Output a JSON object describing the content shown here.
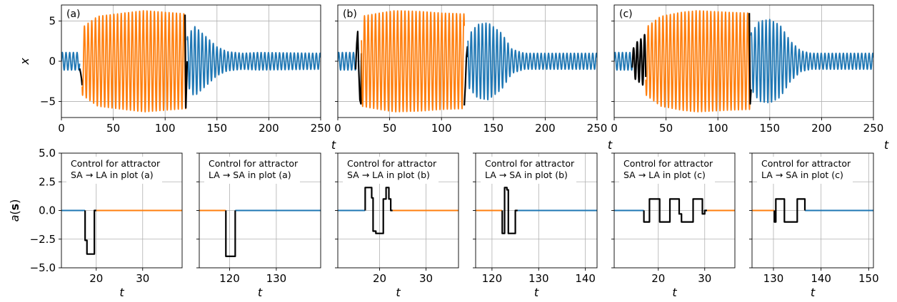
{
  "chart_data": {
    "type": "line",
    "colors": {
      "small_amplitude": "#1f77b4",
      "large_amplitude": "#ff7f0e",
      "control": "#000000"
    },
    "top_panels": [
      {
        "label": "(a)",
        "xlim": [
          0,
          250
        ],
        "ylim": [
          -7,
          7
        ],
        "xticks": [
          "0",
          "50",
          "100",
          "150",
          "200",
          "250"
        ],
        "yticks": [
          "−5",
          "0",
          "5"
        ],
        "ylabel": "x",
        "xlabel": "t",
        "grid": true,
        "segments": [
          {
            "series": "blue",
            "t0": 0,
            "t1": 17.6,
            "env": [
              [
                0,
                1.1
              ],
              [
                17.6,
                1.1
              ]
            ],
            "period": 3.55
          },
          {
            "series": "black",
            "t0": 17.6,
            "t1": 20,
            "pts": [
              [
                17.6,
                -0.9
              ],
              [
                18.6,
                -1.5
              ],
              [
                19.4,
                -2.2
              ],
              [
                20,
                -3
              ]
            ]
          },
          {
            "series": "orange",
            "t0": 20,
            "t1": 120,
            "env": [
              [
                20,
                4.2
              ],
              [
                35,
                5.6
              ],
              [
                60,
                6.0
              ],
              [
                80,
                6.3
              ],
              [
                100,
                6.1
              ],
              [
                120,
                5.9
              ]
            ],
            "period": 3.55
          },
          {
            "series": "black",
            "t0": 119.2,
            "t1": 121,
            "pts": [
              [
                119.2,
                5.8
              ],
              [
                120,
                -5.8
              ],
              [
                121,
                -1.5
              ],
              [
                121.3,
                0
              ]
            ]
          },
          {
            "series": "blue",
            "t0": 121.3,
            "t1": 250,
            "env": [
              [
                121.3,
                3.0
              ],
              [
                128,
                4.4
              ],
              [
                140,
                3.0
              ],
              [
                150,
                1.8
              ],
              [
                160,
                1.2
              ],
              [
                175,
                1.0
              ],
              [
                190,
                1.1
              ],
              [
                250,
                1.0
              ]
            ],
            "period": 3.55
          }
        ]
      },
      {
        "label": "(b)",
        "xlim": [
          0,
          250
        ],
        "ylim": [
          -7,
          7
        ],
        "xticks": [
          "0",
          "50",
          "100",
          "150",
          "200",
          "250"
        ],
        "yticks": [
          "−5",
          "0",
          "5"
        ],
        "ylabel": "",
        "xlabel": "t",
        "grid": true,
        "segments": [
          {
            "series": "blue",
            "t0": 0,
            "t1": 17.2,
            "env": [
              [
                0,
                1.1
              ],
              [
                17.2,
                1.1
              ]
            ],
            "period": 3.55
          },
          {
            "series": "black",
            "t0": 17.2,
            "t1": 22.8,
            "pts": [
              [
                17.2,
                -1.0
              ],
              [
                18.3,
                2.2
              ],
              [
                19.2,
                3.7
              ],
              [
                20.2,
                -1.0
              ],
              [
                21.3,
                -4.8
              ],
              [
                22.3,
                -5.3
              ],
              [
                22.8,
                1
              ]
            ]
          },
          {
            "series": "orange",
            "t0": 22.8,
            "t1": 122,
            "env": [
              [
                22.8,
                5.6
              ],
              [
                40,
                6.0
              ],
              [
                55,
                6.3
              ],
              [
                80,
                6.2
              ],
              [
                100,
                6.0
              ],
              [
                122,
                5.9
              ]
            ],
            "period": 3.55
          },
          {
            "series": "black",
            "t0": 122,
            "t1": 125.5,
            "pts": [
              [
                122,
                -5.5
              ],
              [
                123,
                -3
              ],
              [
                124,
                0.5
              ],
              [
                125,
                1.8
              ],
              [
                125.5,
                0.5
              ]
            ]
          },
          {
            "series": "blue",
            "t0": 125.5,
            "t1": 250,
            "env": [
              [
                125.5,
                3.2
              ],
              [
                135,
                4.6
              ],
              [
                145,
                4.8
              ],
              [
                158,
                3.5
              ],
              [
                168,
                1.5
              ],
              [
                180,
                1.0
              ],
              [
                250,
                1.0
              ]
            ],
            "period": 3.55
          }
        ]
      },
      {
        "label": "(c)",
        "xlim": [
          0,
          250
        ],
        "ylim": [
          -7,
          7
        ],
        "xticks": [
          "0",
          "50",
          "100",
          "150",
          "200",
          "250"
        ],
        "yticks": [
          "−5",
          "0",
          "5"
        ],
        "ylabel": "",
        "xlabel": "t",
        "grid": true,
        "segments": [
          {
            "series": "blue",
            "t0": 0,
            "t1": 17.3,
            "env": [
              [
                0,
                1.1
              ],
              [
                17.3,
                1.1
              ]
            ],
            "period": 3.55
          },
          {
            "series": "black",
            "t0": 17.3,
            "t1": 30.5,
            "env": [
              [
                17.3,
                1.1
              ],
              [
                20,
                2.2
              ],
              [
                24,
                2.6
              ],
              [
                28,
                3.0
              ],
              [
                30.5,
                3.6
              ]
            ],
            "period": 3.55
          },
          {
            "series": "orange",
            "t0": 30.5,
            "t1": 130.8,
            "env": [
              [
                30.5,
                4.2
              ],
              [
                45,
                5.6
              ],
              [
                65,
                6.1
              ],
              [
                80,
                6.3
              ],
              [
                110,
                6.1
              ],
              [
                130.8,
                6.0
              ]
            ],
            "period": 3.55
          },
          {
            "series": "black",
            "t0": 130.3,
            "t1": 132,
            "pts": [
              [
                130.3,
                6.0
              ],
              [
                131.2,
                -5.3
              ],
              [
                132,
                -3.5
              ]
            ]
          },
          {
            "series": "blue",
            "t0": 132,
            "t1": 250,
            "env": [
              [
                132,
                3.5
              ],
              [
                140,
                5.0
              ],
              [
                150,
                5.2
              ],
              [
                160,
                4.5
              ],
              [
                170,
                2.5
              ],
              [
                180,
                1.3
              ],
              [
                190,
                1.0
              ],
              [
                250,
                1.0
              ]
            ],
            "period": 3.55
          }
        ]
      }
    ],
    "bottom_panels": [
      {
        "annotation": [
          "Control for attractor",
          "SA → LA in plot (a)"
        ],
        "xlim": [
          12.5,
          38.5
        ],
        "ylim": [
          -5,
          5
        ],
        "xticks": [
          {
            "v": 20,
            "label": "20"
          },
          {
            "v": 30,
            "label": "30"
          }
        ],
        "show_yticks": true,
        "xlabel": "t",
        "pre": "blue",
        "post": "orange",
        "c0": 17.6,
        "c1": 20,
        "control": [
          [
            17.6,
            0
          ],
          [
            17.6,
            -2.6
          ],
          [
            18.0,
            -2.6
          ],
          [
            18.0,
            -3.8
          ],
          [
            19.6,
            -3.8
          ],
          [
            19.6,
            0
          ],
          [
            20,
            0
          ]
        ]
      },
      {
        "annotation": [
          "Control for attractor",
          "LA → SA in plot (a)"
        ],
        "xlim": [
          113.5,
          139.5
        ],
        "ylim": [
          -5,
          5
        ],
        "xticks": [
          {
            "v": 120,
            "label": "120"
          },
          {
            "v": 130,
            "label": "130"
          }
        ],
        "show_yticks": false,
        "xlabel": "t",
        "pre": "orange",
        "post": "blue",
        "c0": 119.2,
        "c1": 121.2,
        "control": [
          [
            119.2,
            0
          ],
          [
            119.2,
            -4
          ],
          [
            121.2,
            -4
          ],
          [
            121.2,
            0
          ]
        ]
      },
      {
        "annotation": [
          "Control for attractor",
          "SA → LA in plot (b)"
        ],
        "xlim": [
          11,
          37
        ],
        "ylim": [
          -5,
          5
        ],
        "xticks": [
          {
            "v": 20,
            "label": "20"
          },
          {
            "v": 30,
            "label": "30"
          }
        ],
        "show_yticks": false,
        "xlabel": "t",
        "pre": "blue",
        "post": "orange",
        "c0": 16.9,
        "c1": 22.8,
        "control": [
          [
            16.9,
            0
          ],
          [
            16.9,
            2
          ],
          [
            18.3,
            2
          ],
          [
            18.3,
            1.1
          ],
          [
            18.6,
            1.1
          ],
          [
            18.6,
            -1.8
          ],
          [
            19.2,
            -1.8
          ],
          [
            19.2,
            -2
          ],
          [
            20.8,
            -2
          ],
          [
            20.8,
            1.0
          ],
          [
            21.4,
            1.0
          ],
          [
            21.4,
            2
          ],
          [
            22.0,
            2
          ],
          [
            22.0,
            1.0
          ],
          [
            22.4,
            1.0
          ],
          [
            22.4,
            0
          ],
          [
            22.8,
            0
          ]
        ]
      },
      {
        "annotation": [
          "Control for attractor",
          "LA → SA in plot (b)"
        ],
        "xlim": [
          116.5,
          142.5
        ],
        "ylim": [
          -5,
          5
        ],
        "xticks": [
          {
            "v": 120,
            "label": "120"
          },
          {
            "v": 130,
            "label": "130"
          },
          {
            "v": 140,
            "label": "140"
          }
        ],
        "show_yticks": false,
        "xlabel": "t",
        "pre": "orange",
        "post": "blue",
        "c0": 122.2,
        "c1": 125.5,
        "control": [
          [
            122.2,
            0
          ],
          [
            122.2,
            -2
          ],
          [
            122.7,
            -2
          ],
          [
            122.7,
            2
          ],
          [
            123.2,
            2
          ],
          [
            123.2,
            1.8
          ],
          [
            123.5,
            1.8
          ],
          [
            123.5,
            -2
          ],
          [
            125.0,
            -2
          ],
          [
            125.0,
            0
          ],
          [
            125.5,
            0
          ]
        ]
      },
      {
        "annotation": [
          "Control for attractor",
          "SA → LA in plot (c)"
        ],
        "xlim": [
          10.5,
          36.5
        ],
        "ylim": [
          -5,
          5
        ],
        "xticks": [
          {
            "v": 20,
            "label": "20"
          },
          {
            "v": 30,
            "label": "30"
          }
        ],
        "show_yticks": false,
        "xlabel": "t",
        "pre": "blue",
        "post": "orange",
        "c0": 16.9,
        "c1": 30.5,
        "control": [
          [
            16.9,
            0
          ],
          [
            16.9,
            -1
          ],
          [
            18.1,
            -1
          ],
          [
            18.1,
            1
          ],
          [
            20.3,
            1
          ],
          [
            20.3,
            -1
          ],
          [
            22.5,
            -1
          ],
          [
            22.5,
            1
          ],
          [
            24.5,
            1
          ],
          [
            24.5,
            -0.3
          ],
          [
            25.0,
            -0.3
          ],
          [
            25.0,
            -1
          ],
          [
            27.5,
            -1
          ],
          [
            27.5,
            1
          ],
          [
            29.5,
            1
          ],
          [
            29.5,
            -0.3
          ],
          [
            30.0,
            -0.3
          ],
          [
            30.0,
            0
          ],
          [
            30.5,
            0
          ]
        ]
      },
      {
        "annotation": [
          "Control for attractor",
          "LA → SA in plot (c)"
        ],
        "xlim": [
          125.5,
          151
        ],
        "ylim": [
          -5,
          5
        ],
        "xticks": [
          {
            "v": 130,
            "label": "130"
          },
          {
            "v": 140,
            "label": "140"
          },
          {
            "v": 150,
            "label": "150"
          }
        ],
        "show_yticks": false,
        "xlabel": "t",
        "pre": "orange",
        "post": "blue",
        "c0": 130.2,
        "c1": 136.6,
        "control": [
          [
            130.2,
            0
          ],
          [
            130.2,
            -1
          ],
          [
            130.5,
            -1
          ],
          [
            130.5,
            1
          ],
          [
            132.3,
            1
          ],
          [
            132.3,
            -1
          ],
          [
            135.0,
            -1
          ],
          [
            135.0,
            1
          ],
          [
            136.6,
            1
          ],
          [
            136.6,
            0
          ]
        ]
      }
    ],
    "bottom_yticks": [
      "5.0",
      "2.5",
      "0.0",
      "−2.5",
      "−5.0"
    ],
    "bottom_ytick_values": [
      5,
      2.5,
      0,
      -2.5,
      -5
    ],
    "bottom_ylabel": "a(s)",
    "top_ytick_values": [
      -5,
      0,
      5
    ],
    "top_xtick_values": [
      0,
      50,
      100,
      150,
      200,
      250
    ]
  }
}
